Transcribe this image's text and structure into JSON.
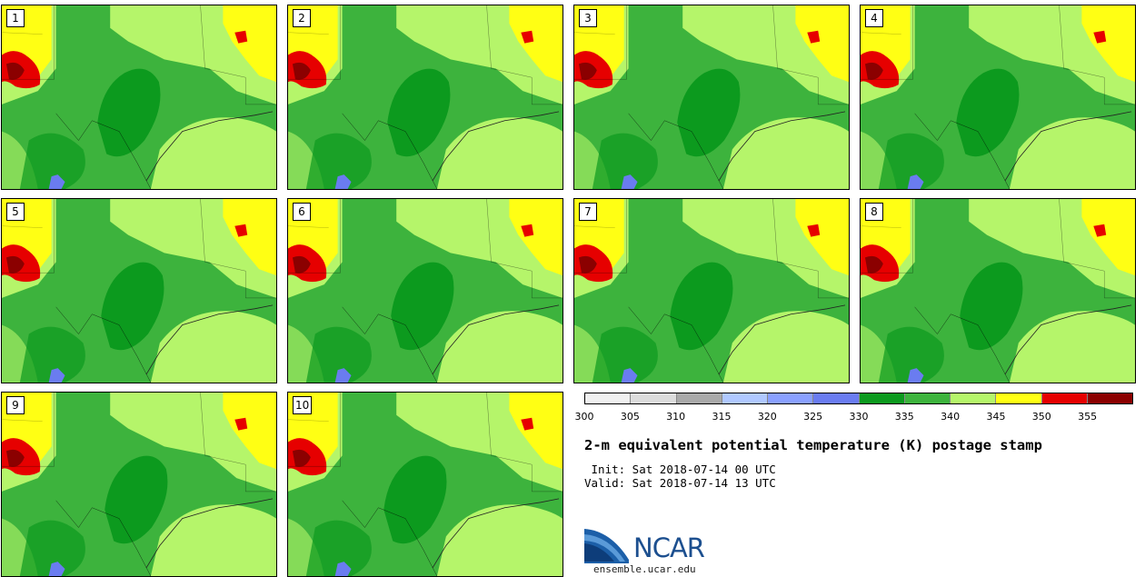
{
  "panels": [
    "1",
    "2",
    "3",
    "4",
    "5",
    "6",
    "7",
    "8",
    "9",
    "10"
  ],
  "colorbar": {
    "colors": [
      "#f0f0f0",
      "#dcdcdc",
      "#a9a9a9",
      "#b0c8ff",
      "#8aa0ff",
      "#6a7cf0",
      "#0c9a1e",
      "#3db33d",
      "#b5f56a",
      "#ffff14",
      "#e60000",
      "#8b0000"
    ],
    "ticks": [
      "300",
      "305",
      "310",
      "315",
      "320",
      "325",
      "330",
      "335",
      "340",
      "345",
      "350",
      "355"
    ]
  },
  "title": "2-m equivalent potential temperature (K) postage stamp",
  "init_line": "Init: Sat 2018-07-14 00 UTC",
  "valid_line": "Valid: Sat 2018-07-14 13 UTC",
  "logo": {
    "text": "NCAR",
    "url": "ensemble.ucar.edu",
    "icon": "ncar-swoosh-icon"
  }
}
